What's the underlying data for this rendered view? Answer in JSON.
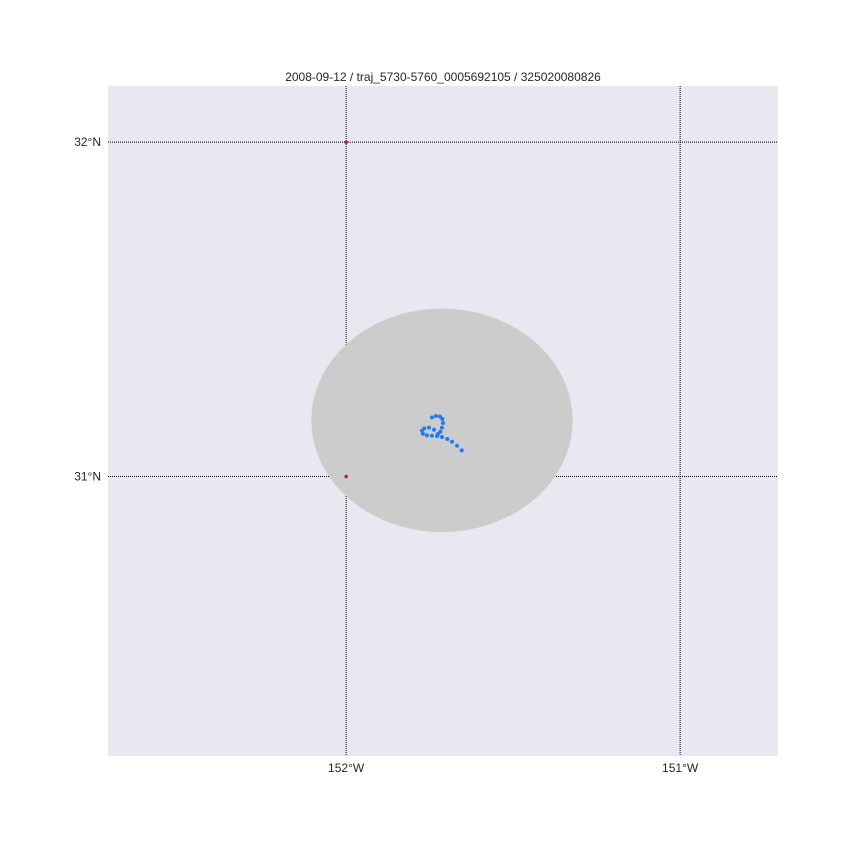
{
  "title": "2008-09-12 / traj_5730-5760_0005692105 / 325020080826",
  "map": {
    "lon_range": [
      -152.713,
      -150.707
    ],
    "lat_range": [
      30.164,
      32.168
    ],
    "background_color": "#e8e8f0",
    "grid_color": "#000000",
    "meridians": [
      {
        "lon": -152.0,
        "label": "152°W"
      },
      {
        "lon": -151.0,
        "label": "151°W"
      }
    ],
    "parallels": [
      {
        "lat": 32.0,
        "label": "32°N"
      },
      {
        "lat": 31.0,
        "label": "31°N"
      }
    ]
  },
  "region": {
    "center_lon": -151.713,
    "center_lat": 31.168,
    "radius_lon": 0.391,
    "radius_lat": 0.334,
    "color": "#cccccc"
  },
  "markers": {
    "color": "#c2185b",
    "points": [
      {
        "lon": -152.0,
        "lat": 32.0
      },
      {
        "lon": -152.0,
        "lat": 31.0
      }
    ]
  },
  "trajectory": {
    "color": "#1e7ef0",
    "points": [
      {
        "lon": -151.654,
        "lat": 31.078
      },
      {
        "lon": -151.668,
        "lat": 31.092
      },
      {
        "lon": -151.683,
        "lat": 31.104
      },
      {
        "lon": -151.697,
        "lat": 31.112
      },
      {
        "lon": -151.713,
        "lat": 31.118
      },
      {
        "lon": -151.728,
        "lat": 31.121
      },
      {
        "lon": -151.743,
        "lat": 31.122
      },
      {
        "lon": -151.758,
        "lat": 31.123
      },
      {
        "lon": -151.77,
        "lat": 31.128
      },
      {
        "lon": -151.773,
        "lat": 31.137
      },
      {
        "lon": -151.766,
        "lat": 31.144
      },
      {
        "lon": -151.752,
        "lat": 31.146
      },
      {
        "lon": -151.737,
        "lat": 31.14
      },
      {
        "lon": -151.725,
        "lat": 31.127
      },
      {
        "lon": -151.718,
        "lat": 31.134
      },
      {
        "lon": -151.713,
        "lat": 31.146
      },
      {
        "lon": -151.71,
        "lat": 31.16
      },
      {
        "lon": -151.712,
        "lat": 31.172
      },
      {
        "lon": -151.719,
        "lat": 31.179
      },
      {
        "lon": -151.731,
        "lat": 31.181
      },
      {
        "lon": -151.743,
        "lat": 31.177
      }
    ]
  }
}
